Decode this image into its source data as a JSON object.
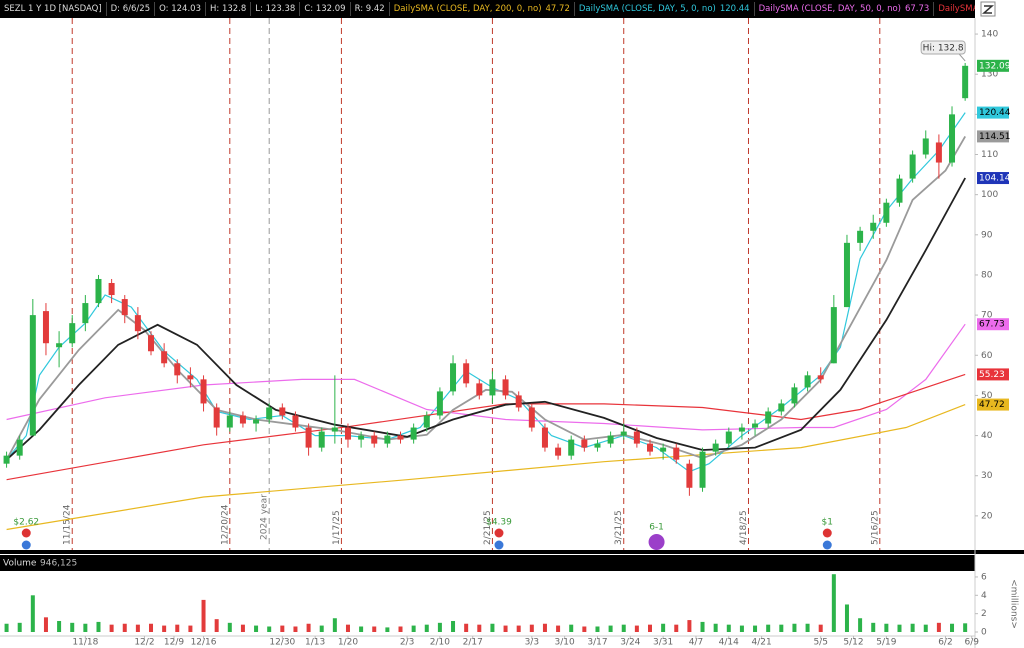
{
  "chart_data": [
    {
      "type": "candlestick",
      "info": {
        "symbol": "SEZL 1 Y 1D [NASDAQ]",
        "date": "D: 6/6/25",
        "open": "O: 124.03",
        "high": "H: 132.8",
        "low": "L: 123.38",
        "close": "C: 132.09",
        "range": "R: 9.42"
      },
      "hi_label": "Hi: 132.8",
      "xlim": [
        -1,
        147.5
      ],
      "ylim": [
        11.5,
        144
      ],
      "yticks": [
        20,
        30,
        40,
        50,
        60,
        70,
        80,
        90,
        100,
        110,
        120,
        130,
        140
      ],
      "up_color": "#2cb34a",
      "down_color": "#e23b3b",
      "candles": {
        "x": [
          0,
          2,
          4,
          6,
          8,
          10,
          12,
          14,
          16,
          18,
          20,
          22,
          24,
          26,
          28,
          30,
          32,
          34,
          36,
          38,
          40,
          42,
          44,
          46,
          48,
          50,
          52,
          54,
          56,
          58,
          60,
          62,
          64,
          66,
          68,
          70,
          72,
          74,
          76,
          78,
          80,
          82,
          84,
          86,
          88,
          90,
          92,
          94,
          96,
          98,
          100,
          102,
          104,
          106,
          108,
          110,
          112,
          114,
          116,
          118,
          120,
          122,
          124,
          126,
          128,
          130,
          132,
          134,
          136,
          138,
          140,
          142,
          144,
          146
        ],
        "open": [
          33,
          35,
          40,
          71,
          62,
          63,
          68,
          73,
          78,
          74,
          70,
          65,
          61,
          58,
          55,
          54,
          47,
          42,
          45,
          43,
          44,
          47,
          45,
          42,
          37,
          41,
          42,
          39,
          40,
          38,
          40,
          39,
          42,
          45,
          51,
          58,
          53,
          50,
          54,
          50,
          47,
          42,
          37,
          35,
          39,
          37,
          38,
          40,
          41,
          38,
          36,
          37,
          33,
          27,
          36,
          38,
          41,
          42,
          43,
          46,
          48,
          52,
          55,
          58,
          72,
          88,
          91,
          93,
          98,
          104,
          110,
          113,
          108,
          124.03
        ],
        "high": [
          36,
          40,
          74,
          73,
          66,
          70,
          75,
          80,
          79,
          75,
          72,
          66,
          63,
          59,
          57,
          55,
          48,
          46,
          46,
          45,
          48,
          48,
          46,
          43,
          42,
          55,
          43,
          41,
          41,
          41,
          41,
          43,
          46,
          52,
          60,
          59,
          54,
          56,
          55,
          51,
          48,
          43,
          38,
          40,
          40,
          39,
          41,
          43,
          42,
          39,
          38,
          38,
          34,
          37,
          39,
          42,
          43,
          44,
          47,
          49,
          53,
          56,
          57,
          75,
          90,
          92,
          95,
          99,
          105,
          111,
          116,
          115,
          122,
          132.8
        ],
        "low": [
          32,
          34,
          40,
          60,
          57,
          62,
          66,
          72,
          73,
          68,
          64,
          60,
          57,
          53,
          52,
          46,
          40,
          41,
          42,
          41,
          43,
          44,
          41,
          35,
          36,
          38,
          37,
          37,
          37,
          37,
          38,
          38,
          41,
          44,
          50,
          52,
          49,
          48,
          49,
          46,
          41,
          36,
          34,
          34,
          36,
          36,
          37,
          39,
          37,
          35,
          34,
          33,
          25,
          26,
          35,
          37,
          39,
          40,
          42,
          45,
          47,
          51,
          53,
          58,
          72,
          86,
          89,
          92,
          97,
          103,
          109,
          104,
          107,
          123.38
        ],
        "close": [
          35,
          39,
          70,
          63,
          63,
          68,
          73,
          79,
          75,
          70,
          66,
          61,
          58,
          55,
          54,
          48,
          42,
          45,
          43,
          44,
          47,
          45,
          42,
          37,
          41,
          42,
          39,
          40,
          38,
          40,
          39,
          42,
          45,
          51,
          58,
          53,
          50,
          54,
          50,
          47,
          42,
          37,
          35,
          39,
          37,
          38,
          40,
          41,
          38,
          36,
          37,
          34,
          27,
          36,
          38,
          41,
          42,
          43,
          46,
          48,
          52,
          55,
          54,
          72,
          88,
          91,
          93,
          98,
          104,
          110,
          114,
          108,
          120,
          132.09
        ]
      },
      "series": [
        {
          "name": "DailySMA (CLOSE, DAY, 200, 0, no)",
          "color": "#e8b820",
          "x": [
            0,
            30,
            61,
            91,
            121,
            137,
            146
          ],
          "values": [
            16.6,
            24.7,
            29,
            33.5,
            37,
            42,
            47.72
          ]
        },
        {
          "name": "DailySMA (CLOSE, DAY, 5, 0, no)",
          "color": "#30c8dc",
          "x": [
            0,
            3,
            5,
            8,
            12,
            15,
            19,
            24,
            29,
            32,
            37,
            42,
            47,
            52,
            58,
            63,
            67,
            70,
            74,
            78,
            83,
            88,
            94,
            99,
            104,
            107,
            112,
            118,
            124,
            127,
            130,
            134,
            138,
            142,
            146
          ],
          "values": [
            34,
            40,
            55,
            62,
            68,
            75,
            72,
            61,
            54,
            46,
            44,
            45,
            40,
            40,
            39,
            42,
            50,
            56,
            52,
            49,
            40,
            37,
            40,
            37,
            31,
            33,
            40,
            47,
            55,
            62,
            84,
            96,
            104,
            111,
            120.44
          ]
        },
        {
          "name": "DailySMA (CLOSE, DAY, 50, 0, no)",
          "color": "#ec6cec",
          "x": [
            0,
            15,
            30,
            45,
            53,
            64,
            76,
            91,
            106,
            121,
            126,
            134,
            140,
            146
          ],
          "values": [
            44,
            49.4,
            52.6,
            54,
            54,
            46.5,
            44,
            43,
            41.4,
            42,
            42,
            46.5,
            54,
            67.73
          ]
        },
        {
          "name": "DailySMA (CLOSE, DAY,...",
          "color": "#e8333a",
          "x": [
            0,
            30,
            52,
            76,
            91,
            106,
            121,
            130,
            146
          ],
          "values": [
            29,
            37.7,
            42.2,
            47.9,
            47.9,
            47,
            44,
            46.5,
            55.23
          ]
        },
        {
          "color": "#9a9a9a",
          "x": [
            0,
            5,
            11,
            17,
            21,
            26,
            32,
            38,
            44,
            50,
            58,
            64,
            68,
            73,
            77,
            82,
            88,
            94,
            100,
            106,
            112,
            118,
            124,
            129,
            134,
            138,
            143,
            146
          ],
          "values": [
            34,
            49,
            61.3,
            71.3,
            66.3,
            56.4,
            46.4,
            44,
            42.7,
            41.4,
            39,
            40.2,
            46.4,
            51.4,
            50.9,
            44,
            39,
            40.2,
            37.7,
            34.4,
            37.7,
            44,
            53.9,
            68.8,
            83.7,
            98.7,
            106,
            114.51
          ]
        },
        {
          "color": "#222222",
          "badge": "#1f35b8",
          "x": [
            0,
            5,
            11,
            17,
            23,
            29,
            35,
            41,
            50,
            61,
            68,
            76,
            82,
            91,
            99,
            106,
            114,
            121,
            127,
            134,
            140,
            146
          ],
          "values": [
            34,
            41.4,
            52.6,
            62.6,
            67.6,
            62.6,
            52.6,
            46.4,
            42.7,
            39.7,
            44,
            47.7,
            48.4,
            44.4,
            39.4,
            36.4,
            37,
            41.4,
            51.4,
            68.8,
            86.2,
            104.14
          ]
        }
      ],
      "events": [
        {
          "x": 10,
          "label": "11/15/24"
        },
        {
          "x": 34,
          "label": "12/20/24"
        },
        {
          "x": 51,
          "label": "1/17/25"
        },
        {
          "x": 74,
          "label": "2/21/25"
        },
        {
          "x": 94,
          "label": "3/21/25"
        },
        {
          "x": 113,
          "label": "4/18/25"
        },
        {
          "x": 133,
          "label": "5/16/25"
        }
      ],
      "year_line": {
        "x": 40,
        "label": "2024 year"
      },
      "dividends": [
        {
          "x": 3,
          "label": "$2.62"
        },
        {
          "x": 75,
          "label": "$4.39"
        },
        {
          "x": 125,
          "label": "$1"
        }
      ],
      "split": {
        "x": 99,
        "label": "6-1"
      }
    },
    {
      "type": "bar",
      "title": "Volume",
      "current": "946,125",
      "y_unit": "<millions>",
      "xlim": [
        -1,
        147.5
      ],
      "ylim": [
        0,
        6.54
      ],
      "yticks": [
        0,
        2,
        4,
        6
      ],
      "xticks": [
        {
          "value": 12,
          "label": "11/18"
        },
        {
          "value": 21,
          "label": "12/2"
        },
        {
          "value": 25.5,
          "label": "12/9"
        },
        {
          "value": 30,
          "label": "12/16"
        },
        {
          "value": 42,
          "label": "12/30"
        },
        {
          "value": 47,
          "label": "1/13"
        },
        {
          "value": 52,
          "label": "1/20"
        },
        {
          "value": 61,
          "label": "2/3"
        },
        {
          "value": 66,
          "label": "2/10"
        },
        {
          "value": 71,
          "label": "2/17"
        },
        {
          "value": 80,
          "label": "3/3"
        },
        {
          "value": 85,
          "label": "3/10"
        },
        {
          "value": 90,
          "label": "3/17"
        },
        {
          "value": 95,
          "label": "3/24"
        },
        {
          "value": 100,
          "label": "3/31"
        },
        {
          "value": 105,
          "label": "4/7"
        },
        {
          "value": 110,
          "label": "4/14"
        },
        {
          "value": 115,
          "label": "4/21"
        },
        {
          "value": 124,
          "label": "5/5"
        },
        {
          "value": 129,
          "label": "5/12"
        },
        {
          "value": 134,
          "label": "5/19"
        },
        {
          "value": 143,
          "label": "6/2"
        },
        {
          "value": 147,
          "label": "6/9"
        }
      ],
      "x": [
        0,
        2,
        4,
        6,
        8,
        10,
        12,
        14,
        16,
        18,
        20,
        22,
        24,
        26,
        28,
        30,
        32,
        34,
        36,
        38,
        40,
        42,
        44,
        46,
        48,
        50,
        52,
        54,
        56,
        58,
        60,
        62,
        64,
        66,
        68,
        70,
        72,
        74,
        76,
        78,
        80,
        82,
        84,
        86,
        88,
        90,
        92,
        94,
        96,
        98,
        100,
        102,
        104,
        106,
        108,
        110,
        112,
        114,
        116,
        118,
        120,
        122,
        124,
        126,
        128,
        130,
        132,
        134,
        136,
        138,
        140,
        142,
        144,
        146
      ],
      "values": [
        0.9,
        1.0,
        4.0,
        1.6,
        1.2,
        1.0,
        0.9,
        1.1,
        0.8,
        0.9,
        0.8,
        0.9,
        0.7,
        0.8,
        0.7,
        3.5,
        1.4,
        1.0,
        0.8,
        0.7,
        0.6,
        0.7,
        0.6,
        0.9,
        0.7,
        1.5,
        0.8,
        0.6,
        0.6,
        0.5,
        0.6,
        0.7,
        0.8,
        1.0,
        1.2,
        0.9,
        0.8,
        0.9,
        0.7,
        0.7,
        0.8,
        0.9,
        0.7,
        0.8,
        0.6,
        0.6,
        0.7,
        0.8,
        0.7,
        0.8,
        0.9,
        0.8,
        1.3,
        1.1,
        0.9,
        0.8,
        0.7,
        0.7,
        0.8,
        0.8,
        0.9,
        0.9,
        0.8,
        6.3,
        3.0,
        1.5,
        1.0,
        0.9,
        0.8,
        0.9,
        0.8,
        1.0,
        0.9,
        0.946125
      ]
    }
  ]
}
